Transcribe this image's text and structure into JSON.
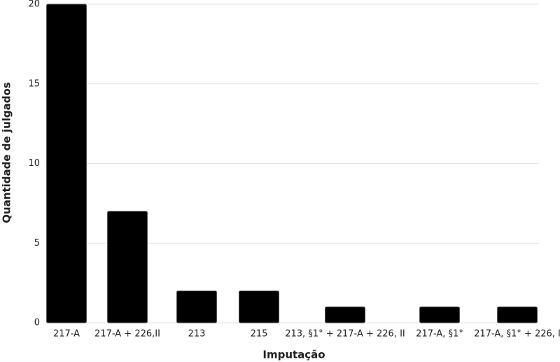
{
  "chart_data": {
    "type": "bar",
    "x_label": "Imputação",
    "y_label": "Quantidade de julgados",
    "categories": [
      "217-A",
      "217-A + 226,II",
      "213",
      "215",
      "213, §1° + 217-A + 226, II",
      "217-A, §1°",
      "217-A, §1° + 226, I"
    ],
    "values": [
      20,
      7,
      2,
      2,
      1,
      1,
      1
    ],
    "color": "#000000",
    "ylim": [
      0,
      20
    ],
    "yticks": [
      0,
      5,
      10,
      15,
      20
    ],
    "grid": true
  }
}
